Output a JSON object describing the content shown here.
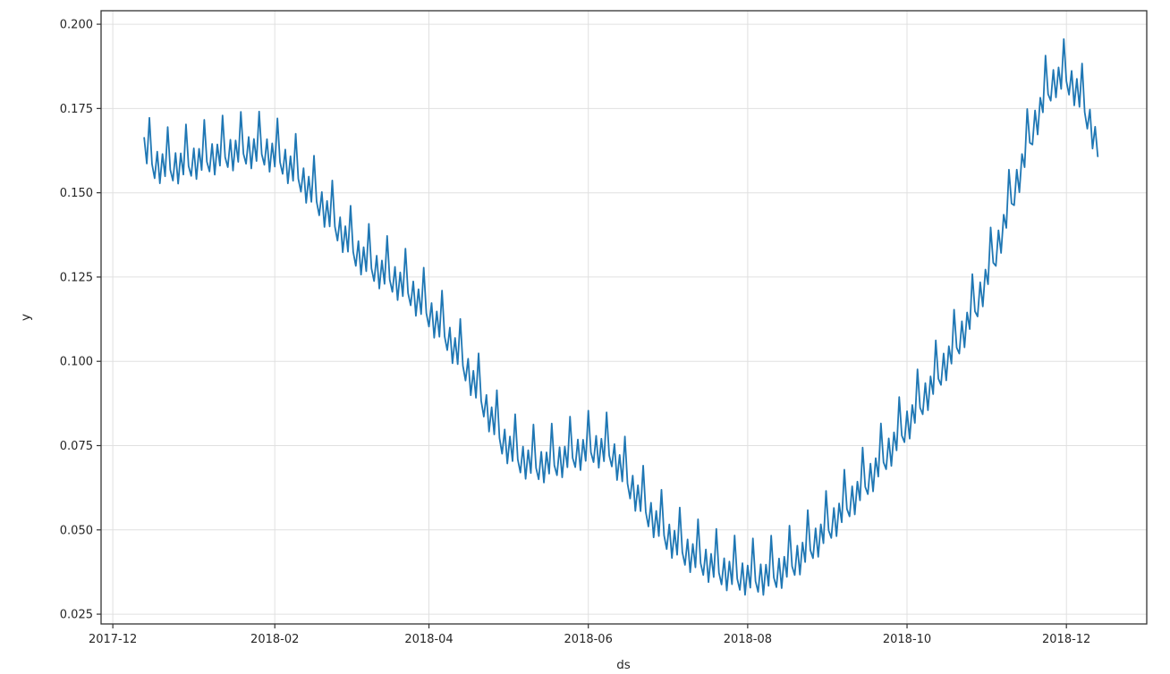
{
  "figure": {
    "background": "#ffffff"
  },
  "chart_data": {
    "type": "line",
    "title": "",
    "xlabel": "ds",
    "ylabel": "y",
    "grid": true,
    "legend": false,
    "colors": {
      "line": "#1f77b4",
      "grid": "#e0e0e0",
      "spine": "#333333",
      "tick_label": "#262626",
      "plot_background": "#ffffff"
    },
    "xlim": [
      "2017-11-26T12:00:00Z",
      "2018-12-31T18:00:00Z"
    ],
    "ylim": [
      0.0221,
      0.204
    ],
    "x_ticks": [
      {
        "date": "2017-12-01",
        "label": "2017-12"
      },
      {
        "date": "2018-02-01",
        "label": "2018-02"
      },
      {
        "date": "2018-04-01",
        "label": "2018-04"
      },
      {
        "date": "2018-06-01",
        "label": "2018-06"
      },
      {
        "date": "2018-08-01",
        "label": "2018-08"
      },
      {
        "date": "2018-10-01",
        "label": "2018-10"
      },
      {
        "date": "2018-12-01",
        "label": "2018-12"
      }
    ],
    "y_ticks": [
      {
        "value": 0.025,
        "label": "0.025"
      },
      {
        "value": 0.05,
        "label": "0.050"
      },
      {
        "value": 0.075,
        "label": "0.075"
      },
      {
        "value": 0.1,
        "label": "0.100"
      },
      {
        "value": 0.125,
        "label": "0.125"
      },
      {
        "value": 0.15,
        "label": "0.150"
      },
      {
        "value": 0.175,
        "label": "0.175"
      },
      {
        "value": 0.2,
        "label": "0.200"
      }
    ],
    "series": [
      {
        "name": "y",
        "color": "#1f77b4",
        "line_width": 1.8,
        "frequency": "daily",
        "start": "2017-12-13",
        "end": "2018-12-13",
        "description": "Daily values = linear interpolation of trend_anchors + weekly_pattern_by_weekday offset",
        "trend_anchors": [
          [
            "2017-12-13",
            0.165
          ],
          [
            "2017-12-17",
            0.1605
          ],
          [
            "2017-12-24",
            0.1598
          ],
          [
            "2017-12-31",
            0.1612
          ],
          [
            "2018-01-07",
            0.1625
          ],
          [
            "2018-01-14",
            0.1638
          ],
          [
            "2018-01-21",
            0.1648
          ],
          [
            "2018-01-28",
            0.1645
          ],
          [
            "2018-02-04",
            0.1618
          ],
          [
            "2018-02-11",
            0.1565
          ],
          [
            "2018-02-18",
            0.1495
          ],
          [
            "2018-02-25",
            0.142
          ],
          [
            "2018-03-04",
            0.1345
          ],
          [
            "2018-03-11",
            0.13
          ],
          [
            "2018-03-18",
            0.1268
          ],
          [
            "2018-03-25",
            0.1228
          ],
          [
            "2018-04-01",
            0.1165
          ],
          [
            "2018-04-08",
            0.1095
          ],
          [
            "2018-04-15",
            0.1005
          ],
          [
            "2018-04-22",
            0.0898
          ],
          [
            "2018-04-29",
            0.0788
          ],
          [
            "2018-05-06",
            0.0732
          ],
          [
            "2018-05-13",
            0.0712
          ],
          [
            "2018-05-20",
            0.0724
          ],
          [
            "2018-05-27",
            0.0748
          ],
          [
            "2018-06-03",
            0.0763
          ],
          [
            "2018-06-10",
            0.075
          ],
          [
            "2018-06-17",
            0.0655
          ],
          [
            "2018-06-24",
            0.0572
          ],
          [
            "2018-07-01",
            0.0505
          ],
          [
            "2018-07-08",
            0.0458
          ],
          [
            "2018-07-15",
            0.0428
          ],
          [
            "2018-07-22",
            0.04
          ],
          [
            "2018-07-29",
            0.0384
          ],
          [
            "2018-08-05",
            0.0378
          ],
          [
            "2018-08-12",
            0.0392
          ],
          [
            "2018-08-19",
            0.0428
          ],
          [
            "2018-08-26",
            0.0478
          ],
          [
            "2018-09-02",
            0.0538
          ],
          [
            "2018-09-09",
            0.0602
          ],
          [
            "2018-09-16",
            0.0668
          ],
          [
            "2018-09-23",
            0.0742
          ],
          [
            "2018-09-30",
            0.0822
          ],
          [
            "2018-10-07",
            0.0905
          ],
          [
            "2018-10-14",
            0.0992
          ],
          [
            "2018-10-21",
            0.1085
          ],
          [
            "2018-10-28",
            0.1195
          ],
          [
            "2018-11-04",
            0.1345
          ],
          [
            "2018-11-11",
            0.1525
          ],
          [
            "2018-11-18",
            0.1705
          ],
          [
            "2018-11-23",
            0.1812
          ],
          [
            "2018-11-27",
            0.1858
          ],
          [
            "2018-12-01",
            0.1862
          ],
          [
            "2018-12-05",
            0.1825
          ],
          [
            "2018-12-09",
            0.1752
          ],
          [
            "2018-12-13",
            0.166
          ]
        ],
        "weekly_pattern_by_weekday": {
          "sun": -0.0062,
          "mon": 0.0018,
          "tue": -0.0075,
          "wed": 0.0013,
          "thu": -0.0052,
          "fri": 0.0095,
          "sat": -0.0031
        }
      }
    ]
  }
}
